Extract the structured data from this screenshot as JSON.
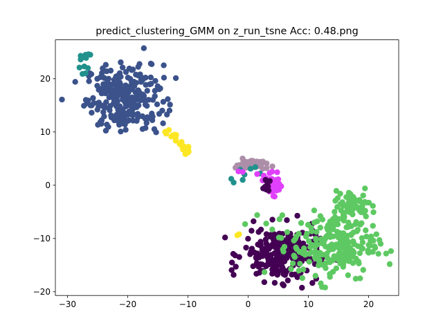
{
  "chart_data": {
    "type": "scatter",
    "title": "predict_clustering_GMM on z_run_tsne  Acc: 0.48.png",
    "xlabel": "",
    "ylabel": "",
    "xlim": [
      -32,
      25
    ],
    "ylim": [
      -20.7,
      27.3
    ],
    "xticks": [
      -30,
      -20,
      -10,
      0,
      10,
      20
    ],
    "yticks": [
      -20,
      -10,
      0,
      10,
      20
    ],
    "grid": false,
    "legend": "none",
    "clusters": [
      {
        "color": "#3b528b",
        "n": 260,
        "spread": "gaussian",
        "cx": -20.5,
        "cy": 16.5,
        "sx": 3.2,
        "sy": 3.1
      },
      {
        "color": "#21918c",
        "n": 12,
        "spread": "points",
        "pts": [
          [
            -27.5,
            24.0
          ],
          [
            -27.0,
            24.5
          ],
          [
            -26.5,
            24.6
          ],
          [
            -27.8,
            23.6
          ],
          [
            -26.9,
            23.9
          ],
          [
            -28.0,
            22.1
          ],
          [
            -27.2,
            22.3
          ],
          [
            -27.5,
            20.9
          ],
          [
            -27.0,
            21.0
          ],
          [
            -26.6,
            22.0
          ],
          [
            -27.8,
            24.3
          ],
          [
            -26.2,
            24.5
          ]
        ]
      },
      {
        "color": "#fde725",
        "n": 30,
        "spread": "line",
        "x0": -13.5,
        "y0": 10.6,
        "x1": -10.0,
        "y1": 6.0,
        "jitter": 0.6,
        "extra": [
          [
            -1.8,
            -9.4
          ],
          [
            -1.5,
            -9.2
          ]
        ]
      },
      {
        "color": "#ad8ea8",
        "n": 40,
        "spread": "gaussian",
        "cx": 0.5,
        "cy": 3.9,
        "sx": 1.3,
        "sy": 0.5
      },
      {
        "color": "#21918c",
        "n": 8,
        "spread": "points",
        "pts": [
          [
            -2.8,
            1.2
          ],
          [
            -2.4,
            0.5
          ],
          [
            -0.9,
            1.0
          ],
          [
            -1.3,
            2.9
          ],
          [
            0.4,
            3.1
          ],
          [
            1.2,
            3.4
          ],
          [
            2.0,
            2.2
          ],
          [
            -0.6,
            2.0
          ]
        ]
      },
      {
        "color": "#e040fb",
        "n": 45,
        "spread": "gaussian",
        "cx": 4.2,
        "cy": 0.1,
        "sx": 0.55,
        "sy": 0.9
      },
      {
        "color": "#e040fb",
        "n": 6,
        "spread": "points",
        "pts": [
          [
            -1.6,
            2.6
          ],
          [
            -0.9,
            2.5
          ],
          [
            1.5,
            2.1
          ],
          [
            2.6,
            1.8
          ],
          [
            2.4,
            0.9
          ],
          [
            3.0,
            1.3
          ]
        ]
      },
      {
        "color": "#440154",
        "n": 230,
        "spread": "gaussian",
        "cx": 5.5,
        "cy": -13.0,
        "sx": 3.1,
        "sy": 2.5
      },
      {
        "color": "#440154",
        "n": 8,
        "spread": "points",
        "pts": [
          [
            3.0,
            -0.8
          ],
          [
            3.4,
            -1.0
          ],
          [
            2.8,
            -0.3
          ],
          [
            3.2,
            0.4
          ],
          [
            2.5,
            -0.6
          ],
          [
            3.6,
            0.8
          ],
          [
            2.9,
            1.0
          ],
          [
            3.3,
            -0.2
          ]
        ]
      },
      {
        "color": "#5ec962",
        "n": 230,
        "spread": "gaussian",
        "cx": 14.0,
        "cy": -11.5,
        "sx": 3.4,
        "sy": 3.2
      },
      {
        "color": "#5ec962",
        "n": 60,
        "spread": "gaussian",
        "cx": 17.5,
        "cy": -3.6,
        "sx": 1.5,
        "sy": 1.3
      },
      {
        "color": "#5ec962",
        "n": 16,
        "spread": "points",
        "pts": [
          [
            21.3,
            -9.2
          ],
          [
            21.8,
            -10.3
          ],
          [
            22.0,
            -11.0
          ],
          [
            20.8,
            -10.4
          ],
          [
            21.0,
            -11.5
          ],
          [
            -0.5,
            -7.3
          ],
          [
            3.0,
            -7.2
          ],
          [
            4.0,
            -8.3
          ],
          [
            5.5,
            -9.9
          ],
          [
            6.5,
            -8.8
          ],
          [
            8.8,
            -7.1
          ],
          [
            1.5,
            -5.6
          ],
          [
            11.0,
            -7.0
          ],
          [
            12.0,
            -5.8
          ],
          [
            15.3,
            -1.6
          ],
          [
            19.4,
            -0.6
          ]
        ]
      }
    ]
  }
}
